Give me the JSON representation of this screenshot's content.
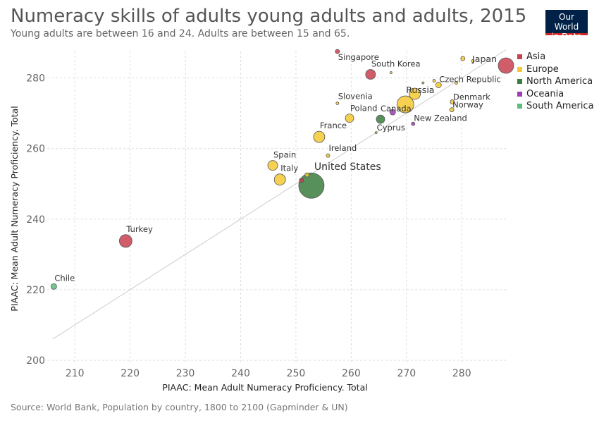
{
  "header": {
    "title": "Numeracy skills of adults young adults and adults, 2015",
    "subtitle": "Young adults are between 16 and 24. Adults are between 15 and 65."
  },
  "logo": {
    "line1": "Our World",
    "line2": "in Data"
  },
  "footer": {
    "source": "Source: World Bank, Population by country, 1800 to 2100 (Gapminder & UN)"
  },
  "legend": [
    {
      "label": "Asia",
      "color": "#c8414f"
    },
    {
      "label": "Europe",
      "color": "#f5c933"
    },
    {
      "label": "North America",
      "color": "#3b7d3f"
    },
    {
      "label": "Oceania",
      "color": "#a03cb4"
    },
    {
      "label": "South America",
      "color": "#5cbd7c"
    }
  ],
  "chart_data": {
    "type": "scatter",
    "xlabel": "PIAAC: Mean Adult Numeracy Proficiency. Total",
    "ylabel": "PIAAC: Mean Adult Numeracy Proficiency. Total",
    "xlim": [
      205,
      288
    ],
    "ylim": [
      199,
      287.5
    ],
    "xticks": [
      210,
      220,
      230,
      240,
      250,
      260,
      270,
      280
    ],
    "yticks": [
      200,
      220,
      240,
      260,
      280
    ],
    "grid": true,
    "legend_position": "right",
    "reference_line": [
      [
        206,
        206
      ],
      [
        288,
        288
      ]
    ],
    "points": [
      {
        "label": "Japan",
        "x": 288,
        "y": 283.5,
        "size": 11,
        "region": "Asia"
      },
      {
        "label": "Singapore",
        "x": 257.5,
        "y": 287.5,
        "size": 3,
        "region": "Asia"
      },
      {
        "label": "South Korea",
        "x": 263.5,
        "y": 281,
        "size": 7,
        "region": "Asia"
      },
      {
        "label": "Turkey",
        "x": 219.2,
        "y": 233.8,
        "size": 9,
        "region": "Asia"
      },
      {
        "label": "",
        "x": 251,
        "y": 251,
        "size": 3,
        "region": "Asia"
      },
      {
        "label": "Czech Republic",
        "x": 275.8,
        "y": 278,
        "size": 4,
        "region": "Europe"
      },
      {
        "label": "Russia",
        "x": 269.8,
        "y": 272.5,
        "size": 12,
        "region": "Europe"
      },
      {
        "label": "",
        "x": 271.5,
        "y": 275.5,
        "size": 8,
        "region": "Europe"
      },
      {
        "label": "Denmark",
        "x": 278.3,
        "y": 273.2,
        "size": 3,
        "region": "Europe"
      },
      {
        "label": "Norway",
        "x": 278.2,
        "y": 271,
        "size": 3,
        "region": "Europe"
      },
      {
        "label": "Slovenia",
        "x": 257.5,
        "y": 272.8,
        "size": 2,
        "region": "Europe"
      },
      {
        "label": "Poland",
        "x": 259.7,
        "y": 268.6,
        "size": 6,
        "region": "Europe"
      },
      {
        "label": "Cyprus",
        "x": 264.5,
        "y": 264.5,
        "size": 1.5,
        "region": "Europe"
      },
      {
        "label": "France",
        "x": 254.2,
        "y": 263.3,
        "size": 8,
        "region": "Europe"
      },
      {
        "label": "Ireland",
        "x": 255.8,
        "y": 258,
        "size": 2.5,
        "region": "Europe"
      },
      {
        "label": "Spain",
        "x": 245.8,
        "y": 255.2,
        "size": 7,
        "region": "Europe"
      },
      {
        "label": "Italy",
        "x": 247.1,
        "y": 251.2,
        "size": 8,
        "region": "Europe"
      },
      {
        "label": "",
        "x": 252,
        "y": 252.5,
        "size": 3,
        "region": "Europe"
      },
      {
        "label": "",
        "x": 280.2,
        "y": 285.5,
        "size": 3,
        "region": "Europe"
      },
      {
        "label": "",
        "x": 282,
        "y": 284.8,
        "size": 2,
        "region": "Europe"
      },
      {
        "label": "",
        "x": 267.2,
        "y": 281.5,
        "size": 1.5,
        "region": "Europe"
      },
      {
        "label": "",
        "x": 275,
        "y": 279.2,
        "size": 2,
        "region": "Europe"
      },
      {
        "label": "",
        "x": 273,
        "y": 278.6,
        "size": 1.5,
        "region": "Europe"
      },
      {
        "label": "",
        "x": 279,
        "y": 278.6,
        "size": 2,
        "region": "Europe"
      },
      {
        "label": "United States",
        "x": 252.8,
        "y": 249.5,
        "size": 18,
        "region": "North America"
      },
      {
        "label": "Canada",
        "x": 265.3,
        "y": 268.3,
        "size": 6,
        "region": "North America"
      },
      {
        "label": "New Zealand",
        "x": 271.2,
        "y": 267,
        "size": 2.5,
        "region": "Oceania"
      },
      {
        "label": "",
        "x": 267.5,
        "y": 270.3,
        "size": 4,
        "region": "Oceania"
      },
      {
        "label": "Chile",
        "x": 206.2,
        "y": 220.9,
        "size": 4,
        "region": "South America"
      }
    ]
  }
}
